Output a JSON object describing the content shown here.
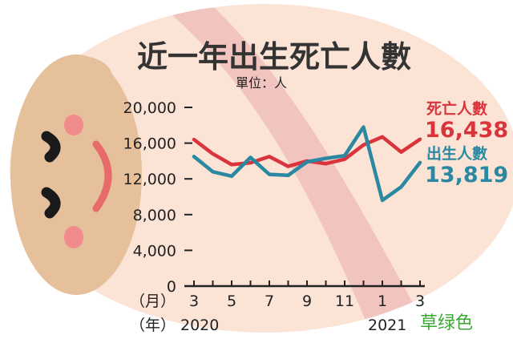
{
  "colors": {
    "background_ellipse": "#fbe3d6",
    "band": "#f2c4c0",
    "face": "#e6c09a",
    "cheek": "#f08c8c",
    "mouth": "#e86b6b",
    "eye": "#1a1a1a",
    "deaths": "#d9343b",
    "births": "#2a88a0",
    "axis": "#222222",
    "watermark": "#3aa832"
  },
  "icons": [
    "baby-face-illustration"
  ],
  "chart_data": {
    "type": "line",
    "title": "近一年出生死亡人數",
    "unit_label": "單位：人",
    "x": [
      "2020-03",
      "2020-04",
      "2020-05",
      "2020-06",
      "2020-07",
      "2020-08",
      "2020-09",
      "2020-10",
      "2020-11",
      "2020-12",
      "2021-01",
      "2021-02",
      "2021-03"
    ],
    "x_tick_labels": [
      "3",
      "5",
      "7",
      "9",
      "11",
      "1",
      "3"
    ],
    "x_tick_months": [
      "2020-03",
      "2020-05",
      "2020-07",
      "2020-09",
      "2020-11",
      "2021-01",
      "2021-03"
    ],
    "x_unit_label": "（月）",
    "year_unit_label": "（年）",
    "year_labels": [
      "2020",
      "2021"
    ],
    "ylim": [
      0,
      20000
    ],
    "y_tick_labels": [
      "0",
      "4,000",
      "8,000",
      "12,000",
      "16,000",
      "20,000"
    ],
    "series": [
      {
        "name": "死亡人數",
        "color": "#d9343b",
        "values": [
          16400,
          14800,
          13600,
          13800,
          14500,
          13400,
          14000,
          13700,
          14200,
          15800,
          16700,
          15000,
          16438
        ],
        "end_label": "16,438"
      },
      {
        "name": "出生人數",
        "color": "#2a88a0",
        "values": [
          14500,
          12800,
          12300,
          14400,
          12500,
          12400,
          13900,
          14300,
          14600,
          17800,
          9600,
          11100,
          13819
        ],
        "end_label": "13,819"
      }
    ]
  },
  "watermark": "草绿色"
}
